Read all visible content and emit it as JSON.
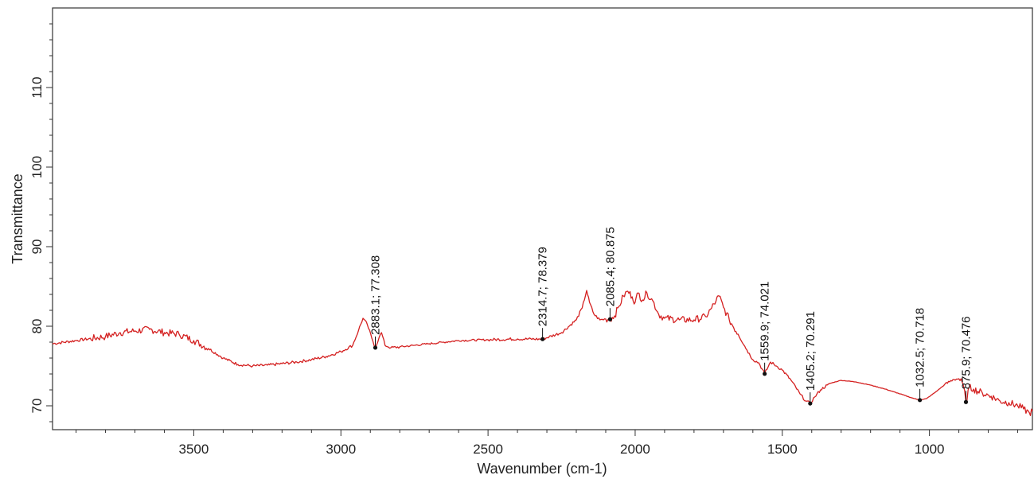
{
  "chart_data": {
    "type": "line",
    "xlabel": "Wavenumber (cm-1)",
    "ylabel": "Transmittance",
    "xlim": [
      3980,
      650
    ],
    "ylim": [
      67,
      120
    ],
    "x_reversed": true,
    "grid": false,
    "x_ticks": [
      3500,
      3000,
      2500,
      2000,
      1500,
      1000
    ],
    "y_ticks": [
      70,
      80,
      90,
      100,
      110
    ],
    "colors": {
      "line": "#d42020",
      "axes": "#333333",
      "marker": "#111111"
    },
    "series": [
      {
        "x": [
          3980,
          3900,
          3800,
          3750,
          3700,
          3650,
          3600,
          3550,
          3500,
          3450,
          3400,
          3350,
          3300,
          3250,
          3200,
          3150,
          3100,
          3050,
          3000,
          2960,
          2940,
          2925,
          2910,
          2895,
          2883,
          2870,
          2862,
          2850,
          2830,
          2800,
          2750,
          2700,
          2650,
          2600,
          2500,
          2400,
          2314.7,
          2250,
          2200,
          2180,
          2165,
          2155,
          2140,
          2120,
          2100,
          2085.4,
          2070,
          2055,
          2040,
          2025,
          2010,
          2000,
          1990,
          1975,
          1960,
          1940,
          1920,
          1900,
          1850,
          1800,
          1760,
          1740,
          1725,
          1715,
          1700,
          1680,
          1650,
          1620,
          1600,
          1580,
          1559.9,
          1540,
          1520,
          1500,
          1470,
          1440,
          1420,
          1405.2,
          1390,
          1370,
          1340,
          1300,
          1250,
          1200,
          1150,
          1100,
          1060,
          1032.5,
          1010,
          980,
          950,
          920,
          900,
          885,
          875.9,
          865,
          850,
          820,
          790,
          760,
          730,
          700,
          680,
          660,
          650
        ],
        "y": [
          77.8,
          78.2,
          78.7,
          79.2,
          79.4,
          79.6,
          79.2,
          79.0,
          78.2,
          77.2,
          76.0,
          75.2,
          75.0,
          75.1,
          75.3,
          75.5,
          75.8,
          76.2,
          76.8,
          77.6,
          79.5,
          81.0,
          80.2,
          78.5,
          77.308,
          78.6,
          79.2,
          77.6,
          77.3,
          77.4,
          77.6,
          77.8,
          78.0,
          78.2,
          78.3,
          78.4,
          78.379,
          79.2,
          80.8,
          82.3,
          84.5,
          83.0,
          81.5,
          80.8,
          80.9,
          80.875,
          81.3,
          82.5,
          83.8,
          84.4,
          83.7,
          83.0,
          84.2,
          83.3,
          84.2,
          83.2,
          81.5,
          81.0,
          80.8,
          80.8,
          81.2,
          82.3,
          83.2,
          83.8,
          82.4,
          80.8,
          79.0,
          77.0,
          75.8,
          75.4,
          74.021,
          75.5,
          75.0,
          74.5,
          73.2,
          71.5,
          70.6,
          70.291,
          71.1,
          72.0,
          72.8,
          73.2,
          73.0,
          72.6,
          72.1,
          71.5,
          71.0,
          70.718,
          70.9,
          71.7,
          72.6,
          73.3,
          73.4,
          72.6,
          70.476,
          72.3,
          72.1,
          71.6,
          71.2,
          70.6,
          70.4,
          70.0,
          69.6,
          69.1,
          69.3
        ]
      }
    ],
    "annotations": [
      {
        "x": 2883.1,
        "y": 77.308,
        "text": "2883.1; 77.308"
      },
      {
        "x": 2314.7,
        "y": 78.379,
        "text": "2314.7; 78.379"
      },
      {
        "x": 2085.4,
        "y": 80.875,
        "text": "2085.4; 80.875"
      },
      {
        "x": 1559.9,
        "y": 74.021,
        "text": "1559.9; 74.021"
      },
      {
        "x": 1405.2,
        "y": 70.291,
        "text": "1405.2; 70.291"
      },
      {
        "x": 1032.5,
        "y": 70.718,
        "text": "1032.5; 70.718"
      },
      {
        "x": 875.9,
        "y": 70.476,
        "text": "875.9; 70.476"
      }
    ]
  }
}
